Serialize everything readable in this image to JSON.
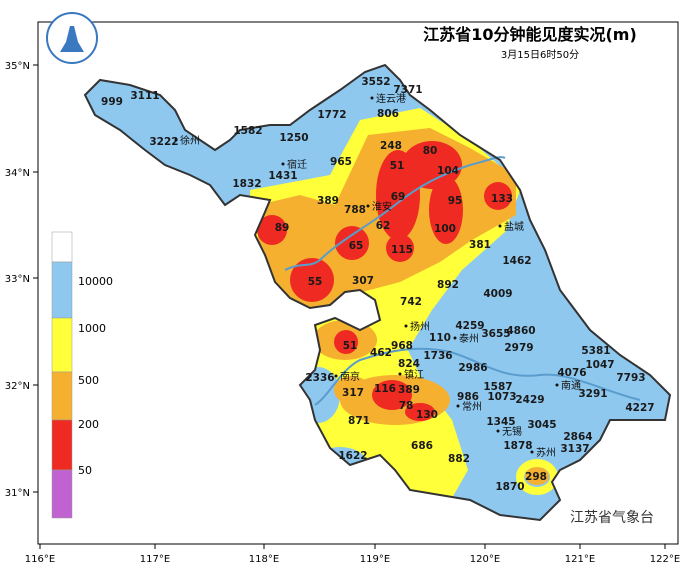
{
  "title": "江苏省10分钟能见度实况(m)",
  "subtitle": "3月15日6时50分",
  "watermark": "江苏省气象台",
  "axes": {
    "x_ticks": [
      "116°E",
      "117°E",
      "118°E",
      "119°E",
      "120°E",
      "121°E",
      "122°E"
    ],
    "y_ticks": [
      "35°N",
      "34°N",
      "33°N",
      "32°N",
      "31°N"
    ]
  },
  "legend": {
    "labels": [
      "10000",
      "1000",
      "500",
      "200",
      "50"
    ],
    "colors": [
      "#ffffff",
      "#8ec8ef",
      "#ffff3a",
      "#f5b030",
      "#ee2a22",
      "#c063d0"
    ]
  },
  "colors": {
    "blue": "#8ec8ef",
    "yellow": "#ffff3a",
    "orange": "#f5b030",
    "red": "#ee2a22",
    "river": "#5a9ccc",
    "border": "#333333"
  },
  "cities": [
    "徐州",
    "宿迁",
    "连云港",
    "淮安",
    "盐城",
    "扬州",
    "泰州",
    "南京",
    "镇江",
    "常州",
    "无锡",
    "苏州",
    "南通"
  ],
  "stations": [
    "999",
    "3111",
    "3222",
    "1582",
    "1250",
    "1772",
    "3552",
    "7371",
    "806",
    "248",
    "965",
    "1431",
    "1832",
    "51",
    "80",
    "104",
    "389",
    "788",
    "69",
    "95",
    "133",
    "89",
    "62",
    "65",
    "115",
    "100",
    "381",
    "1462",
    "55",
    "307",
    "742",
    "892",
    "4009",
    "4259",
    "3655",
    "4860",
    "968",
    "110",
    "51",
    "462",
    "2979",
    "5381",
    "1736",
    "824",
    "2986",
    "4076",
    "1047",
    "7793",
    "2336",
    "317",
    "116",
    "389",
    "1587",
    "986",
    "1073",
    "2429",
    "3291",
    "4227",
    "78",
    "130",
    "871",
    "1345",
    "3045",
    "2864",
    "3137",
    "1878",
    "686",
    "882",
    "1622",
    "298",
    "1870"
  ]
}
